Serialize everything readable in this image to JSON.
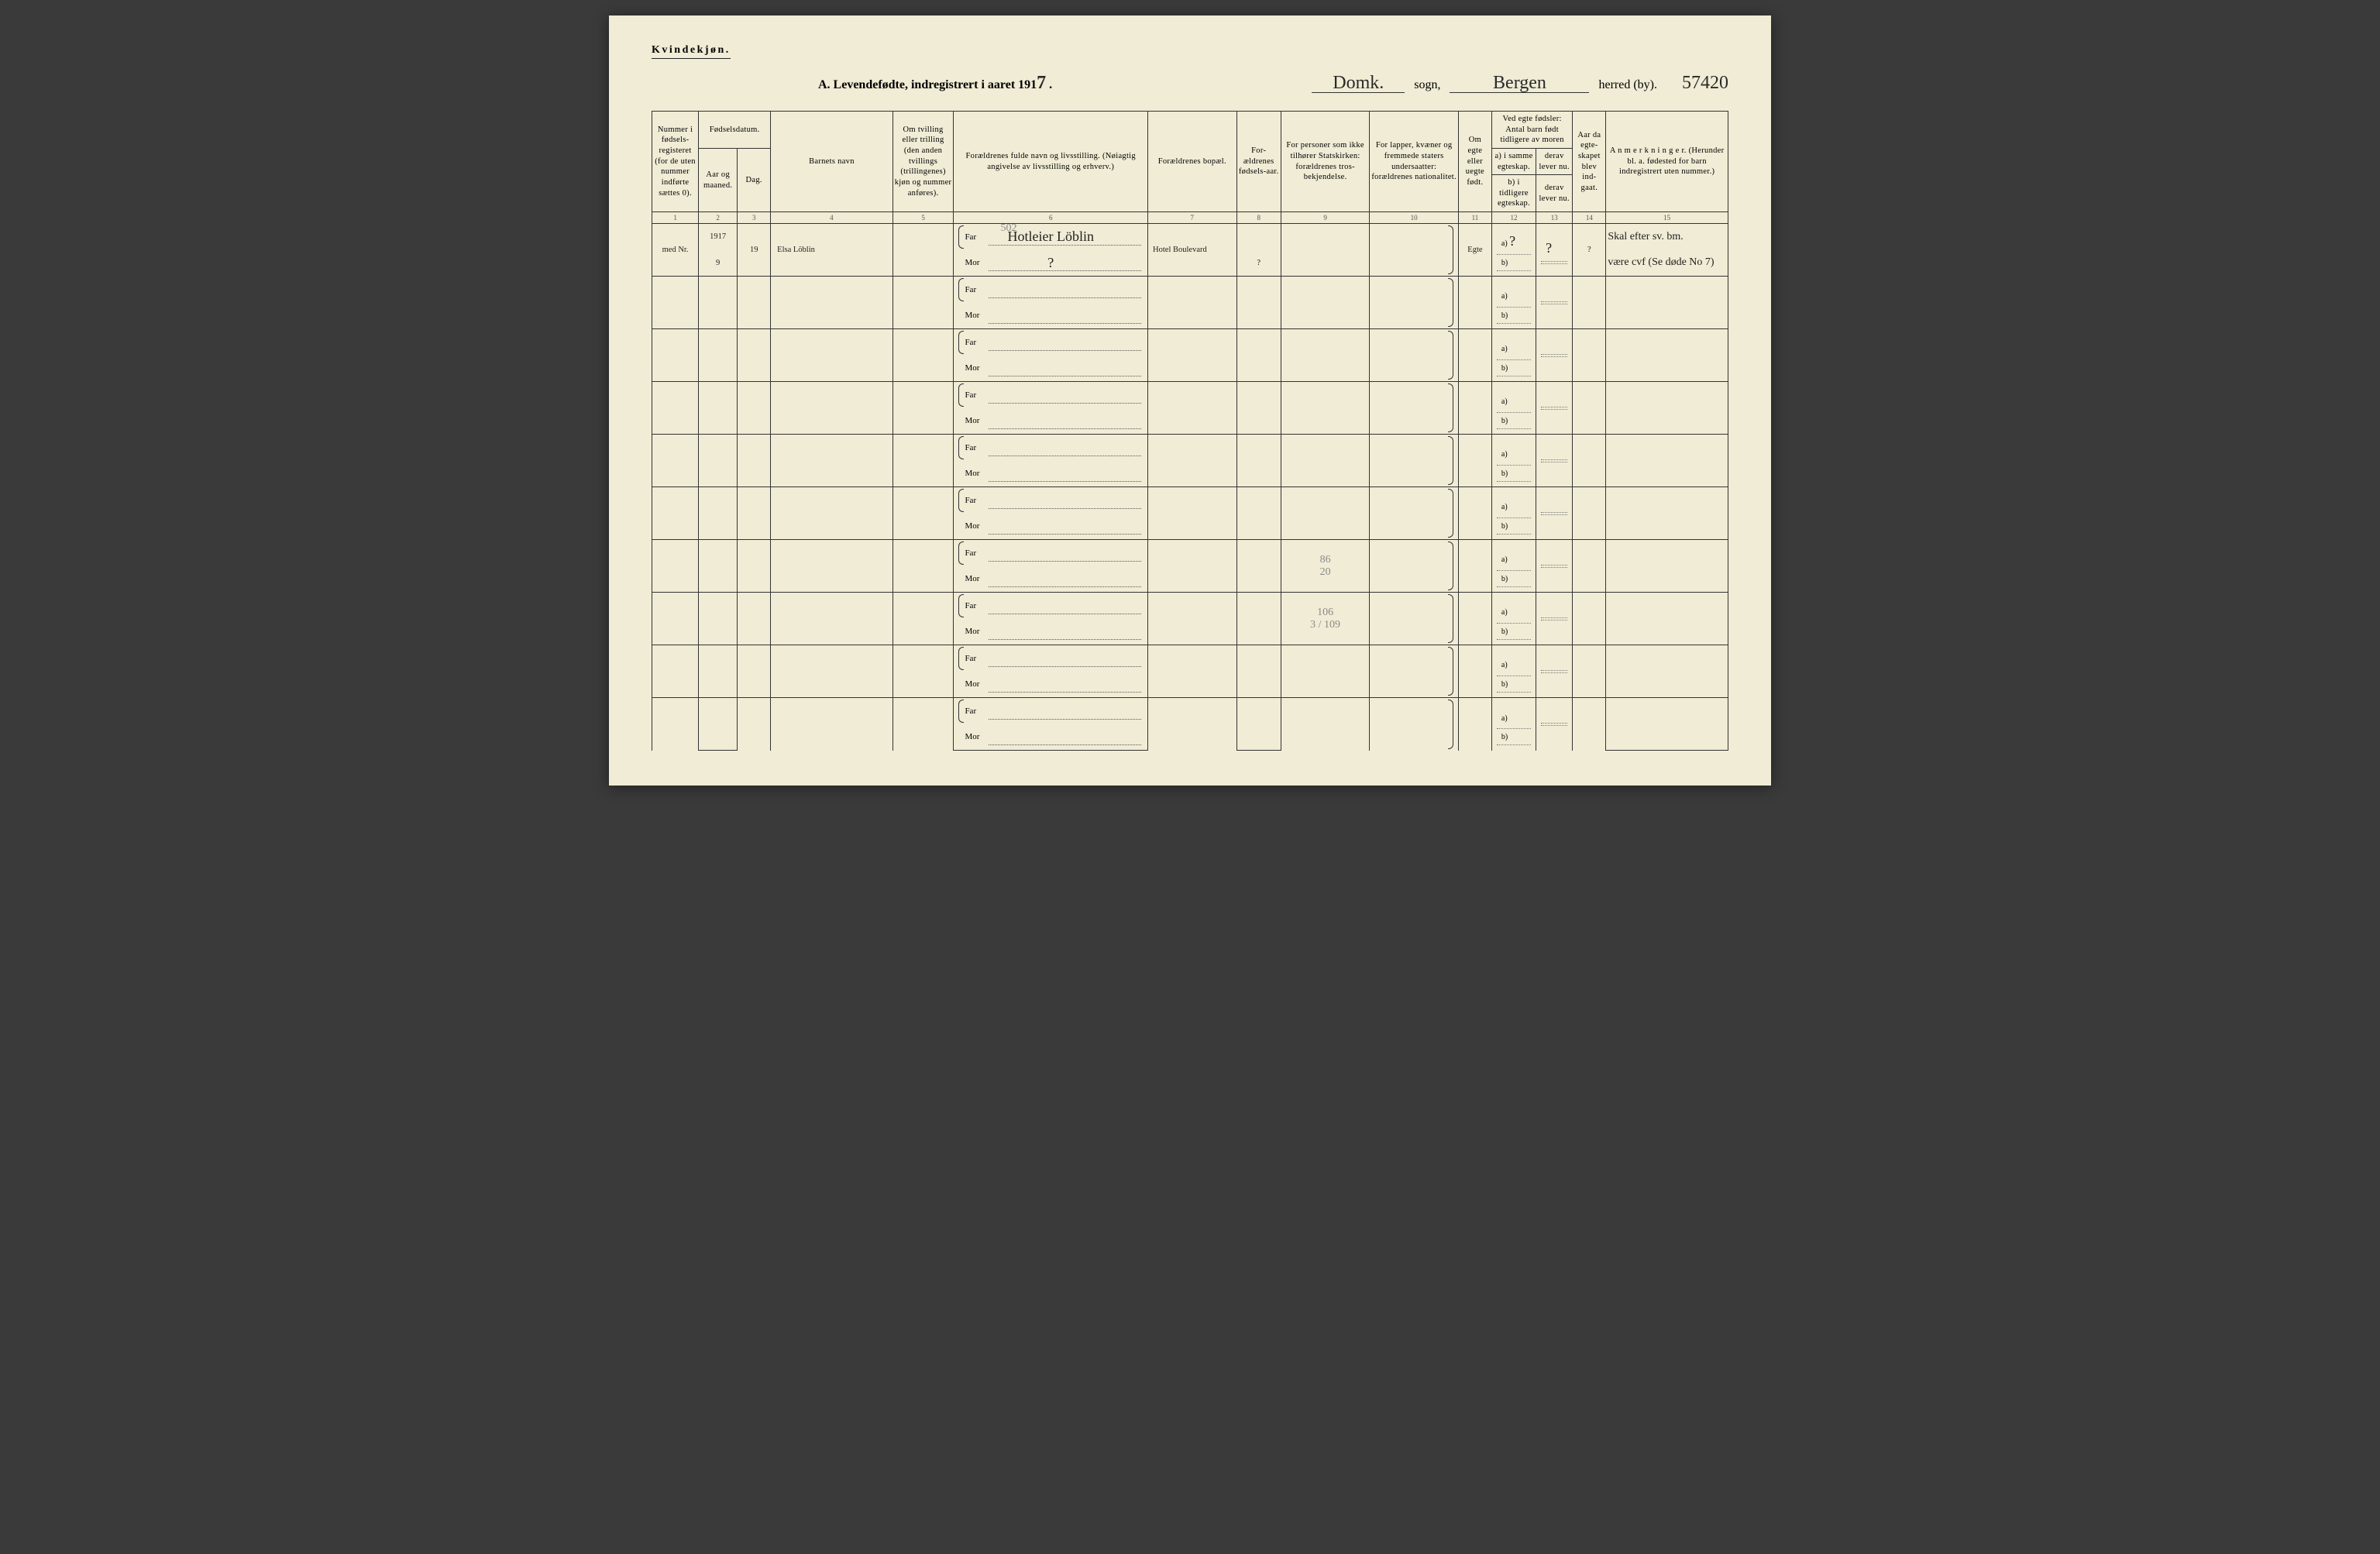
{
  "page": {
    "gender_label": "Kvindekjøn.",
    "title_prefix": "A. Levendefødte, indregistrert i aaret 191",
    "year_suffix": "7",
    "sogn_label": "sogn,",
    "sogn_value": "Domk.",
    "herred_label": "herred (by).",
    "herred_value": "Bergen",
    "page_code": "57420"
  },
  "columns": {
    "c1": "Nummer i fødsels-registeret (for de uten nummer indførte sættes 0).",
    "c2a": "Fødselsdatum.",
    "c2": "Aar og maaned.",
    "c3": "Dag.",
    "c4": "Barnets navn",
    "c5": "Om tvilling eller trilling (den anden tvillings (trillingenes) kjøn og nummer anføres).",
    "c6": "Forældrenes fulde navn og livsstilling. (Nøiagtig angivelse av livsstilling og erhverv.)",
    "c7": "Forældrenes bopæl.",
    "c8": "For-ældrenes fødsels-aar.",
    "c9": "For personer som ikke tilhører Statskirken: forældrenes tros-bekjendelse.",
    "c10": "For lapper, kvæner og fremmede staters undersaatter: forældrenes nationalitet.",
    "c11": "Om egte eller uegte født.",
    "c12h": "Ved egte fødsler: Antal barn født tidligere av moren",
    "c12a": "a) i samme egteskap.",
    "c12b": "b) i tidligere egteskap.",
    "c13a": "derav lever nu.",
    "c13b": "derav lever nu.",
    "c14": "Aar da egte-skapet blev ind-gaat.",
    "c15": "A n m e r k n i n g e r. (Herunder bl. a. fødested for barn indregistrert uten nummer.)"
  },
  "colnums": [
    "1",
    "2",
    "3",
    "4",
    "5",
    "6",
    "7",
    "8",
    "9",
    "10",
    "11",
    "12",
    "13",
    "14",
    "15"
  ],
  "parent_labels": {
    "far": "Far",
    "mor": "Mor"
  },
  "ab_labels": {
    "a": "a)",
    "b": "b)"
  },
  "row1_note_code": "502",
  "rows": [
    {
      "num": "med Nr.",
      "year": "1917",
      "month": "9",
      "day": "19",
      "child": "Elsa Löblin",
      "far": "Hotleier Löblin",
      "mor": "?",
      "bopael": "Hotel Boulevard",
      "far_aar": "",
      "mor_aar": "?",
      "egte": "Egte",
      "a12": "?",
      "a13": "?",
      "aar14": "?",
      "remarks_far": "Skal efter sv. bm.",
      "remarks_mor": "være cvf (Se døde No 7)"
    },
    {
      "far": "",
      "mor": ""
    },
    {
      "far": "",
      "mor": ""
    },
    {
      "far": "",
      "mor": ""
    },
    {
      "far": "",
      "mor": ""
    },
    {
      "far": "",
      "mor": ""
    },
    {
      "far": "",
      "mor": "",
      "pencil_col9": "86",
      "pencil_col9b": "20"
    },
    {
      "far": "",
      "mor": "",
      "pencil_col9": "106",
      "pencil_col9b": "3 / 109"
    },
    {
      "far": "",
      "mor": ""
    },
    {
      "far": "",
      "mor": ""
    }
  ]
}
